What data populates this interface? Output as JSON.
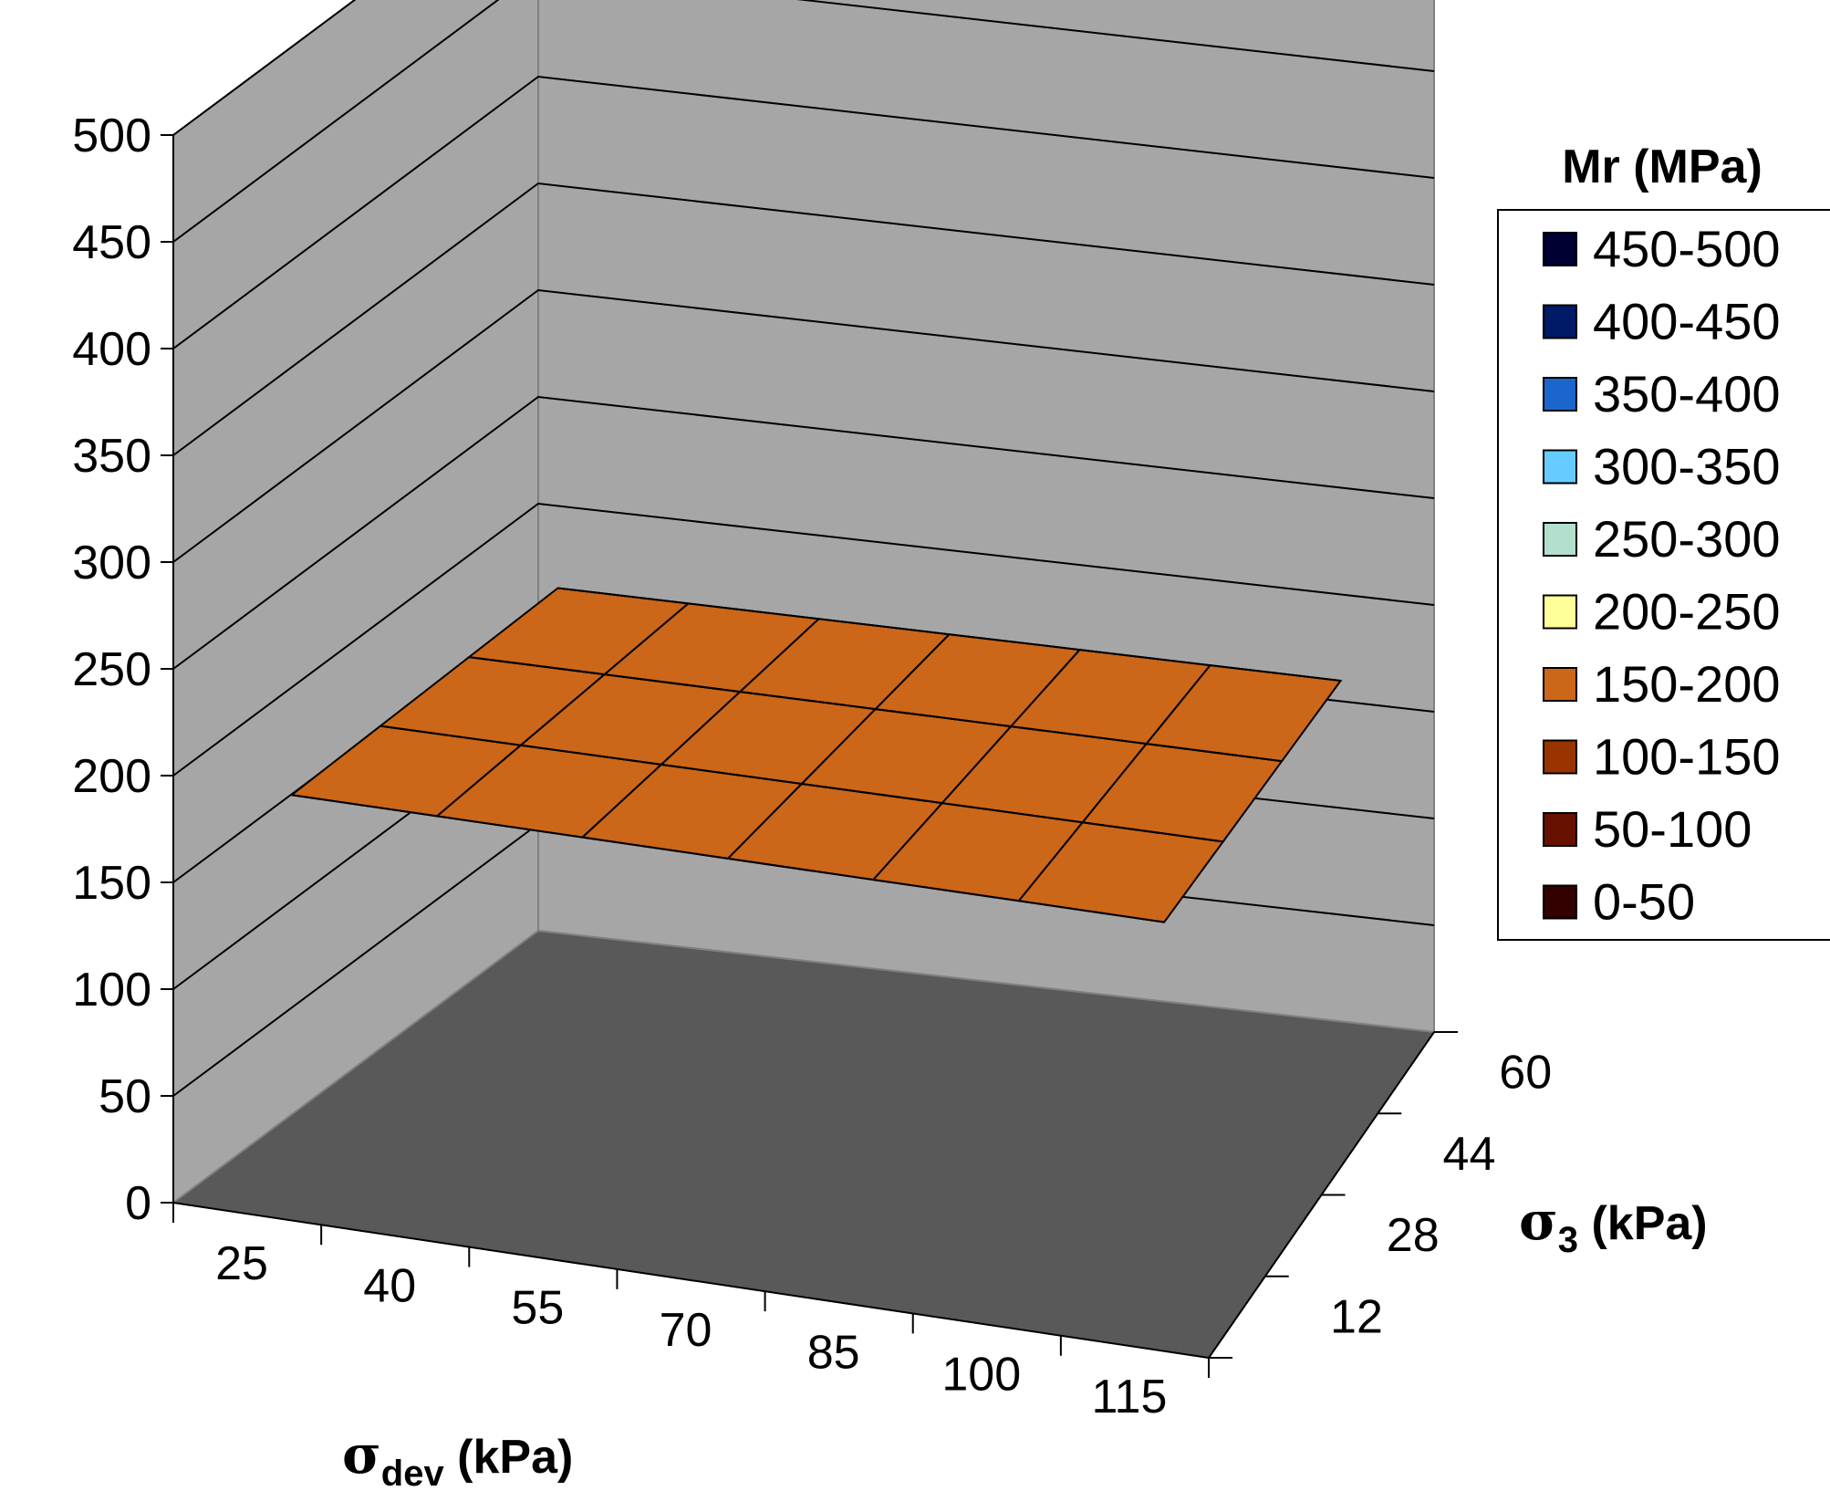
{
  "chart_data": {
    "type": "surface",
    "title": "",
    "x_axis": {
      "symbol": "σ",
      "subscript": "dev",
      "unit": " (kPa)",
      "categories": [
        "25",
        "40",
        "55",
        "70",
        "85",
        "100",
        "115"
      ]
    },
    "y_axis": {
      "symbol": "σ",
      "subscript": "3",
      "unit": " (kPa)",
      "categories": [
        "12",
        "28",
        "44",
        "60"
      ]
    },
    "z_axis": {
      "min": 0,
      "max": 500,
      "step": 50,
      "ticks": [
        "0",
        "50",
        "100",
        "150",
        "200",
        "250",
        "300",
        "350",
        "400",
        "450",
        "500"
      ]
    },
    "values": [
      [
        180,
        180,
        180,
        180,
        180,
        180,
        180
      ],
      [
        180,
        180,
        180,
        180,
        180,
        180,
        180
      ],
      [
        180,
        180,
        180,
        180,
        180,
        180,
        180
      ],
      [
        180,
        180,
        180,
        180,
        180,
        180,
        180
      ]
    ],
    "legend": {
      "title": "Mr (MPa)",
      "position": "right",
      "entries": [
        {
          "label": "450-500",
          "color": "#000033"
        },
        {
          "label": "400-450",
          "color": "#001a66"
        },
        {
          "label": "350-400",
          "color": "#1a66cc"
        },
        {
          "label": "300-350",
          "color": "#66ccff"
        },
        {
          "label": "250-300",
          "color": "#b3e0cc"
        },
        {
          "label": "200-250",
          "color": "#ffff99"
        },
        {
          "label": "150-200",
          "color": "#cc6619"
        },
        {
          "label": "100-150",
          "color": "#993300"
        },
        {
          "label": "50-100",
          "color": "#661100"
        },
        {
          "label": "0-50",
          "color": "#330000"
        }
      ]
    },
    "wall_color": "#a6a6a6",
    "floor_color": "#595959",
    "surface_color": "#cc6619",
    "grid": true
  }
}
